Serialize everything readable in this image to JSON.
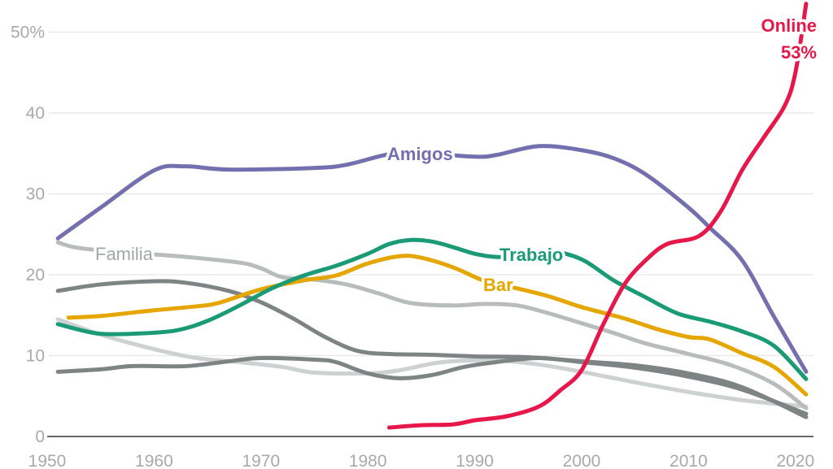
{
  "chart_data": {
    "type": "line",
    "title": "",
    "xlabel": "",
    "ylabel": "",
    "xlim": [
      1950,
      2020
    ],
    "ylim": [
      0,
      50
    ],
    "x_ticks": [
      "1950",
      "1960",
      "1970",
      "1980",
      "1990",
      "2000",
      "2010",
      "2020"
    ],
    "y_ticks": [
      "0",
      "10",
      "20",
      "30",
      "40",
      "50%"
    ],
    "grid": true,
    "series": [
      {
        "name": "Familia_light2",
        "label": "",
        "color": "#cdd1d1",
        "points": [
          [
            1951,
            14.5
          ],
          [
            1955,
            12.6
          ],
          [
            1960,
            10.8
          ],
          [
            1964,
            9.7
          ],
          [
            1968,
            9.2
          ],
          [
            1972,
            8.6
          ],
          [
            1975,
            7.9
          ],
          [
            1980,
            7.8
          ],
          [
            1983,
            8.2
          ],
          [
            1987,
            9.2
          ],
          [
            1992,
            9.4
          ],
          [
            1996,
            8.9
          ],
          [
            2000,
            8.0
          ],
          [
            2005,
            6.7
          ],
          [
            2010,
            5.5
          ],
          [
            2015,
            4.5
          ],
          [
            2021,
            3.7
          ]
        ]
      },
      {
        "name": "Gray_a",
        "label": "",
        "color": "#7e8484",
        "points": [
          [
            1951,
            8.0
          ],
          [
            1955,
            8.3
          ],
          [
            1958,
            8.7
          ],
          [
            1963,
            8.7
          ],
          [
            1967,
            9.3
          ],
          [
            1970,
            9.7
          ],
          [
            1975,
            9.5
          ],
          [
            1977,
            9.2
          ],
          [
            1980,
            7.8
          ],
          [
            1983,
            7.2
          ],
          [
            1986,
            7.6
          ],
          [
            1989,
            8.6
          ],
          [
            1992,
            9.2
          ],
          [
            1996,
            9.7
          ],
          [
            2000,
            9.2
          ],
          [
            2005,
            8.5
          ],
          [
            2010,
            7.4
          ],
          [
            2015,
            5.8
          ],
          [
            2021,
            2.8
          ]
        ]
      },
      {
        "name": "Gray_b",
        "label": "",
        "color": "#7e8484",
        "points": [
          [
            1951,
            18.0
          ],
          [
            1955,
            18.8
          ],
          [
            1960,
            19.2
          ],
          [
            1963,
            19.0
          ],
          [
            1967,
            18.0
          ],
          [
            1970,
            16.6
          ],
          [
            1973,
            14.6
          ],
          [
            1976,
            12.3
          ],
          [
            1979,
            10.6
          ],
          [
            1982,
            10.2
          ],
          [
            1986,
            10.1
          ],
          [
            1990,
            9.9
          ],
          [
            1995,
            9.8
          ],
          [
            2000,
            9.3
          ],
          [
            2005,
            8.8
          ],
          [
            2010,
            7.8
          ],
          [
            2015,
            6.1
          ],
          [
            2021,
            2.4
          ]
        ]
      },
      {
        "name": "Familia",
        "label": "Familia",
        "color": "#b8bcbc",
        "points": [
          [
            1951,
            24.0
          ],
          [
            1953,
            23.3
          ],
          [
            1958,
            22.7
          ],
          [
            1963,
            22.2
          ],
          [
            1968,
            21.5
          ],
          [
            1970,
            20.8
          ],
          [
            1972,
            19.7
          ],
          [
            1975,
            19.4
          ],
          [
            1978,
            18.8
          ],
          [
            1981,
            17.7
          ],
          [
            1984,
            16.5
          ],
          [
            1988,
            16.2
          ],
          [
            1991,
            16.4
          ],
          [
            1994,
            16.2
          ],
          [
            1997,
            15.2
          ],
          [
            2000,
            14.0
          ],
          [
            2003,
            12.8
          ],
          [
            2006,
            11.5
          ],
          [
            2010,
            10.2
          ],
          [
            2014,
            8.8
          ],
          [
            2018,
            6.5
          ],
          [
            2021,
            3.5
          ]
        ]
      },
      {
        "name": "Bar",
        "label": "Bar",
        "color": "#e5a600",
        "points": [
          [
            1952,
            14.7
          ],
          [
            1955,
            14.9
          ],
          [
            1960,
            15.6
          ],
          [
            1964,
            16.1
          ],
          [
            1966,
            16.5
          ],
          [
            1970,
            18.2
          ],
          [
            1974,
            19.3
          ],
          [
            1977,
            19.9
          ],
          [
            1980,
            21.4
          ],
          [
            1983,
            22.3
          ],
          [
            1985,
            22.1
          ],
          [
            1988,
            20.9
          ],
          [
            1991,
            19.2
          ],
          [
            1994,
            18.3
          ],
          [
            1997,
            17.3
          ],
          [
            2000,
            16.0
          ],
          [
            2004,
            14.6
          ],
          [
            2007,
            13.3
          ],
          [
            2010,
            12.3
          ],
          [
            2012,
            12.0
          ],
          [
            2015,
            10.3
          ],
          [
            2018,
            8.6
          ],
          [
            2021,
            5.2
          ]
        ]
      },
      {
        "name": "Trabajo",
        "label": "Trabajo",
        "color": "#1b9a76",
        "points": [
          [
            1951,
            13.9
          ],
          [
            1953,
            13.2
          ],
          [
            1955,
            12.7
          ],
          [
            1958,
            12.7
          ],
          [
            1962,
            13.1
          ],
          [
            1965,
            14.3
          ],
          [
            1968,
            16.2
          ],
          [
            1971,
            18.3
          ],
          [
            1974,
            19.9
          ],
          [
            1977,
            21.1
          ],
          [
            1980,
            22.6
          ],
          [
            1982,
            23.8
          ],
          [
            1984,
            24.3
          ],
          [
            1986,
            24.1
          ],
          [
            1988,
            23.4
          ],
          [
            1990,
            22.6
          ],
          [
            1992,
            22.2
          ],
          [
            1994,
            22.3
          ],
          [
            1997,
            22.9
          ],
          [
            2000,
            21.9
          ],
          [
            2003,
            19.3
          ],
          [
            2006,
            17.2
          ],
          [
            2009,
            15.2
          ],
          [
            2012,
            14.2
          ],
          [
            2015,
            13.0
          ],
          [
            2018,
            11.2
          ],
          [
            2021,
            7.1
          ]
        ]
      },
      {
        "name": "Amigos",
        "label": "Amigos",
        "color": "#7470b0",
        "points": [
          [
            1951,
            24.5
          ],
          [
            1955,
            28.3
          ],
          [
            1960,
            32.9
          ],
          [
            1963,
            33.4
          ],
          [
            1967,
            33.0
          ],
          [
            1975,
            33.2
          ],
          [
            1978,
            33.6
          ],
          [
            1982,
            34.9
          ],
          [
            1985,
            35.0
          ],
          [
            1990,
            34.6
          ],
          [
            1992,
            34.8
          ],
          [
            1996,
            35.9
          ],
          [
            2000,
            35.4
          ],
          [
            2003,
            34.4
          ],
          [
            2006,
            32.4
          ],
          [
            2010,
            28.3
          ],
          [
            2012,
            25.8
          ],
          [
            2015,
            21.8
          ],
          [
            2018,
            14.8
          ],
          [
            2021,
            8.0
          ]
        ]
      },
      {
        "name": "Online",
        "label": "Online",
        "value_label": "53%",
        "color": "#e8174a",
        "points": [
          [
            1982,
            1.1
          ],
          [
            1985,
            1.4
          ],
          [
            1988,
            1.5
          ],
          [
            1990,
            2.0
          ],
          [
            1993,
            2.5
          ],
          [
            1996,
            3.7
          ],
          [
            1998,
            5.7
          ],
          [
            2000,
            8.2
          ],
          [
            2002,
            13.8
          ],
          [
            2004,
            18.8
          ],
          [
            2006,
            21.8
          ],
          [
            2008,
            23.8
          ],
          [
            2011,
            24.8
          ],
          [
            2013,
            27.8
          ],
          [
            2015,
            32.9
          ],
          [
            2017,
            36.9
          ],
          [
            2019,
            40.9
          ],
          [
            2020,
            45.0
          ],
          [
            2021,
            53.5
          ]
        ]
      }
    ]
  }
}
